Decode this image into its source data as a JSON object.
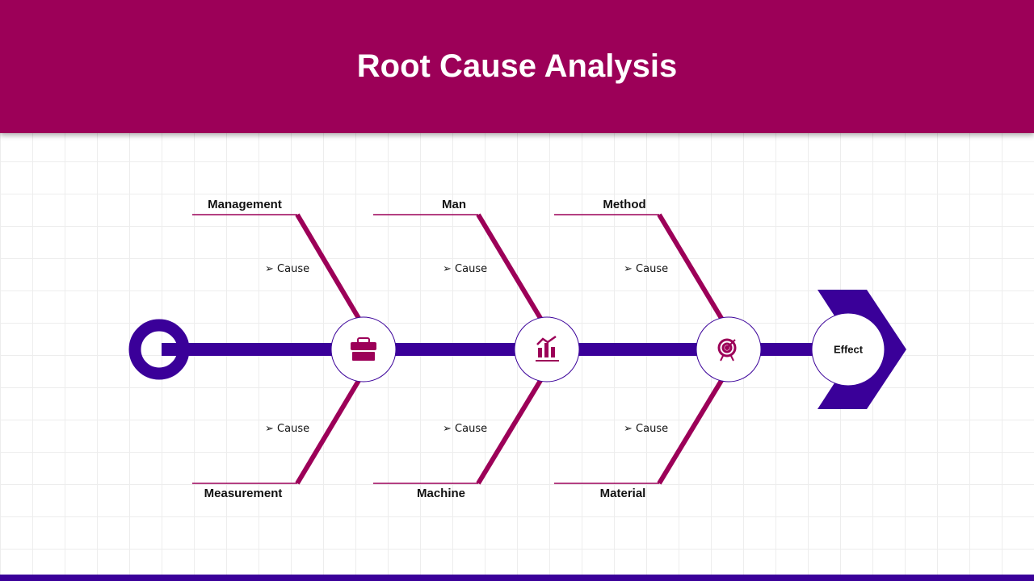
{
  "title": "Root Cause Analysis",
  "effect": "Effect",
  "colors": {
    "header": "#9c0058",
    "spine": "#3a0099",
    "bone": "#9c0058"
  },
  "categories": {
    "top": [
      "Management",
      "Man",
      "Method"
    ],
    "bottom": [
      "Measurement",
      "Machine",
      "Material"
    ]
  },
  "cause_label": "Cause",
  "icons": [
    "briefcase-icon",
    "chart-growth-icon",
    "target-icon"
  ]
}
